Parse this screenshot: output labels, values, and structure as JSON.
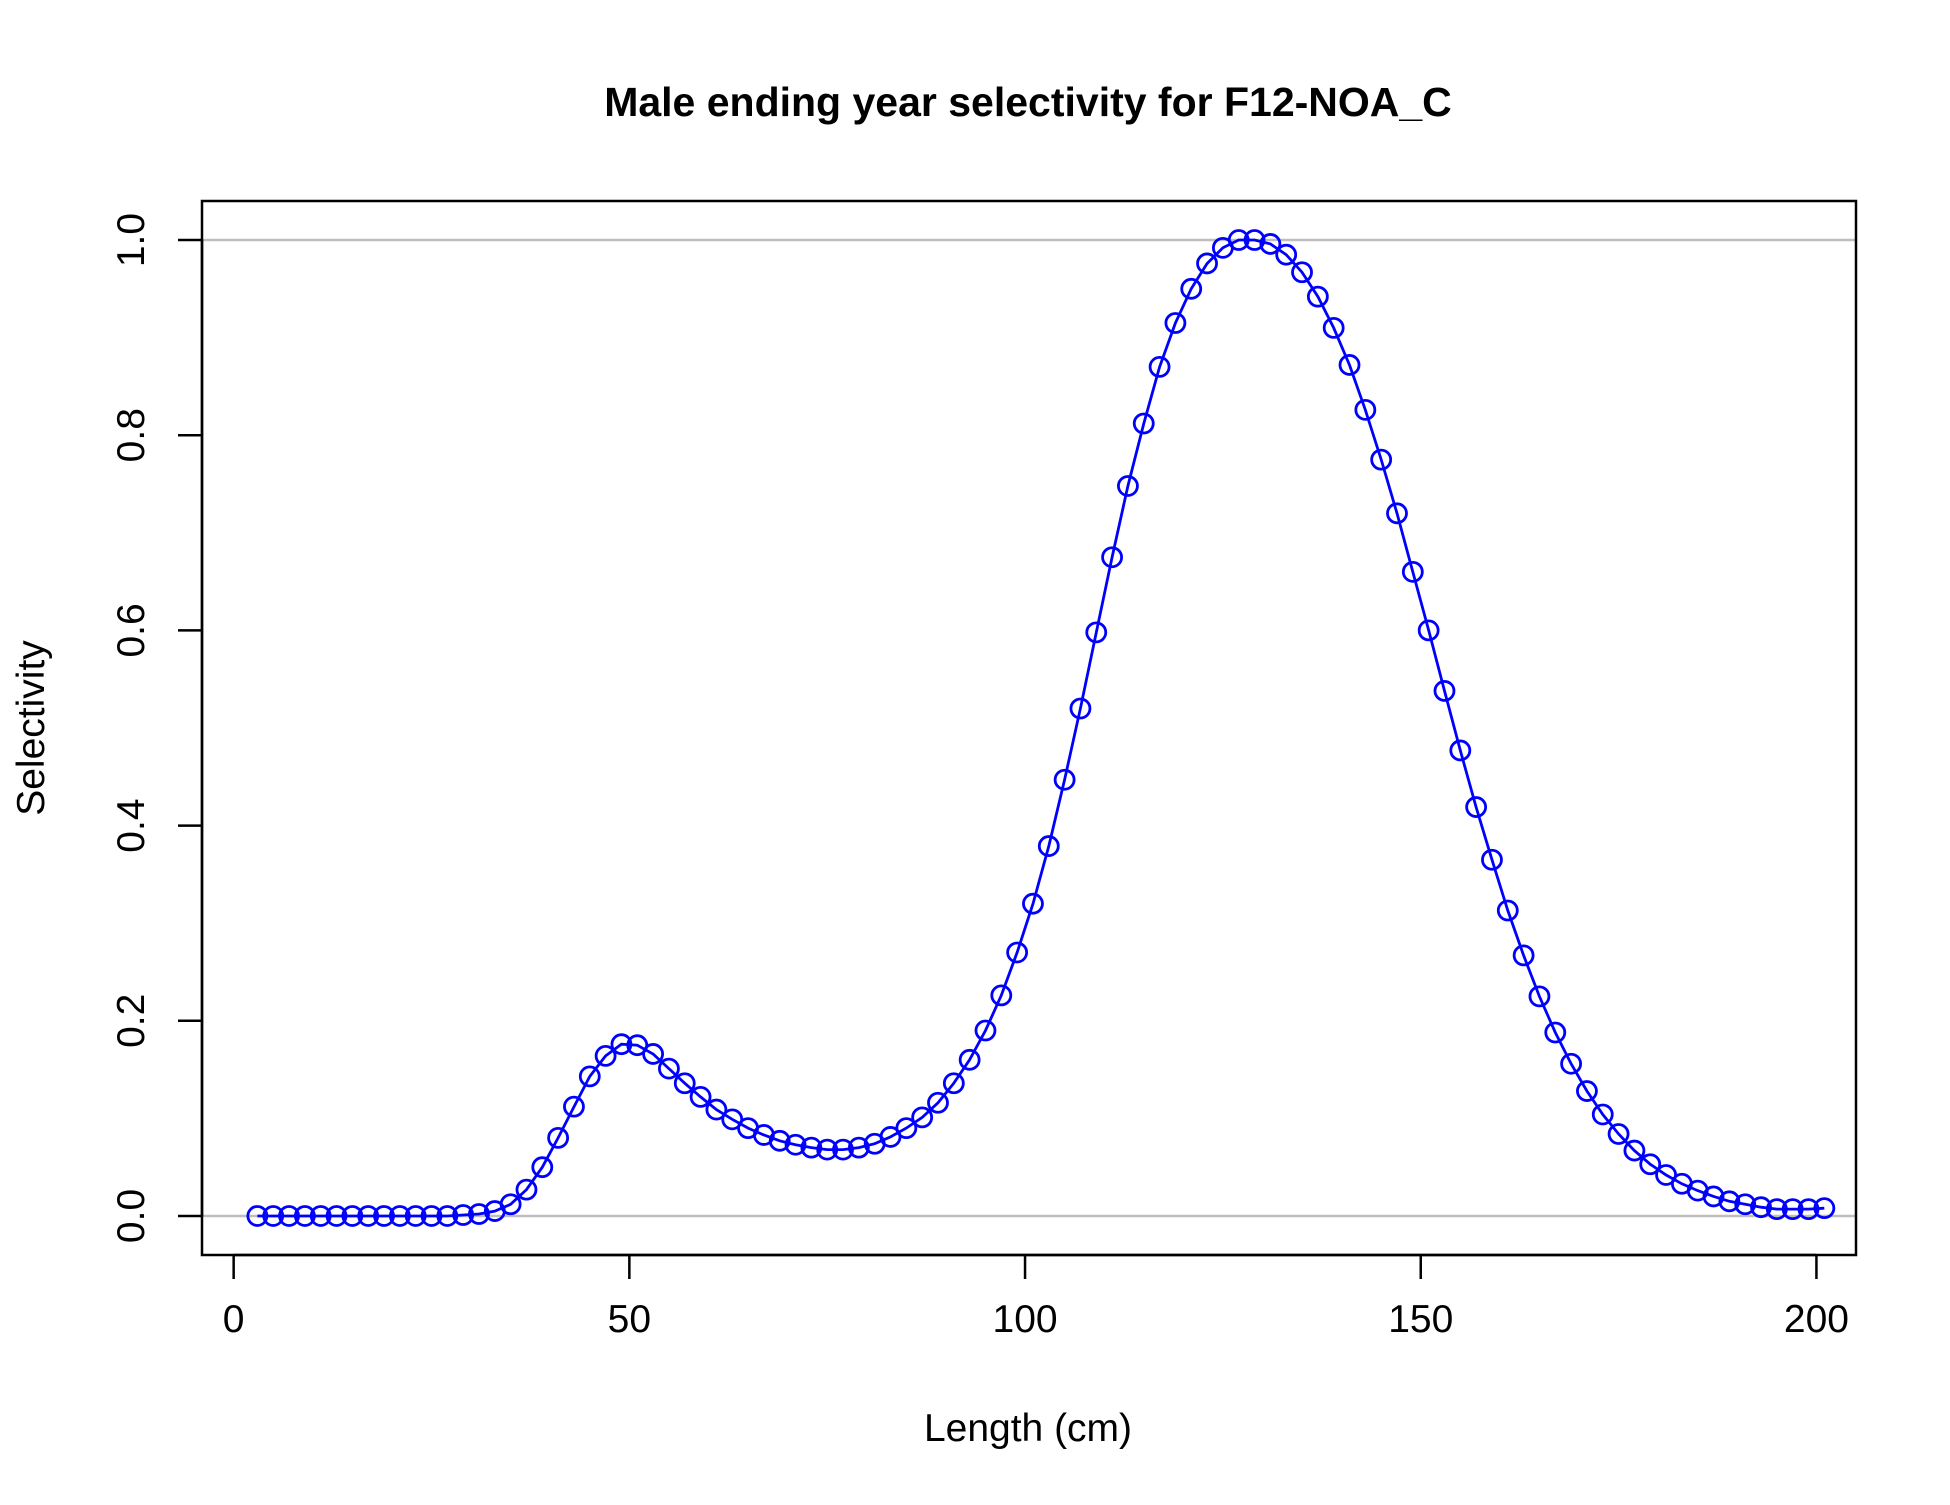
{
  "chart_data": {
    "type": "line",
    "title": "Male ending year selectivity for F12-NOA_C",
    "xlabel": "Length (cm)",
    "ylabel": "Selectivity",
    "xlim": [
      -4,
      205
    ],
    "ylim": [
      -0.04,
      1.04
    ],
    "x_ticks": [
      0,
      50,
      100,
      150,
      200
    ],
    "y_ticks": [
      0.0,
      0.2,
      0.4,
      0.6,
      0.8,
      1.0
    ],
    "x_tick_labels": [
      "0",
      "50",
      "100",
      "150",
      "200"
    ],
    "y_tick_labels": [
      "0.0",
      "0.2",
      "0.4",
      "0.6",
      "0.8",
      "1.0"
    ],
    "reference_lines": [
      0,
      1
    ],
    "grid": false,
    "legend": "none",
    "colors": {
      "series": "#0000ff",
      "reference": "#bebebe"
    },
    "series": [
      {
        "x": [
          3,
          5,
          7,
          9,
          11,
          13,
          15,
          17,
          19,
          21,
          23,
          25,
          27,
          29,
          31,
          33,
          35,
          37,
          39,
          41,
          43,
          45,
          47,
          49,
          51,
          53,
          55,
          57,
          59,
          61,
          63,
          65,
          67,
          69,
          71,
          73,
          75,
          77,
          79,
          81,
          83,
          85,
          87,
          89,
          91,
          93,
          95,
          97,
          99,
          101,
          103,
          105,
          107,
          109,
          111,
          113,
          115,
          117,
          119,
          121,
          123,
          125,
          127,
          129,
          131,
          133,
          135,
          137,
          139,
          141,
          143,
          145,
          147,
          149,
          151,
          153,
          155,
          157,
          159,
          161,
          163,
          165,
          167,
          169,
          171,
          173,
          175,
          177,
          179,
          181,
          183,
          185,
          187,
          189,
          191,
          193,
          195,
          197,
          199,
          201
        ],
        "values": [
          0.0,
          0.0,
          0.0,
          0.0,
          0.0,
          0.0,
          0.0,
          0.0,
          0.0,
          0.0,
          0.0,
          0.0,
          0.0,
          0.001,
          0.002,
          0.005,
          0.012,
          0.027,
          0.05,
          0.08,
          0.112,
          0.143,
          0.164,
          0.176,
          0.175,
          0.166,
          0.151,
          0.136,
          0.122,
          0.109,
          0.099,
          0.09,
          0.083,
          0.077,
          0.073,
          0.07,
          0.068,
          0.068,
          0.07,
          0.074,
          0.081,
          0.09,
          0.101,
          0.116,
          0.136,
          0.16,
          0.19,
          0.226,
          0.27,
          0.32,
          0.379,
          0.447,
          0.52,
          0.598,
          0.675,
          0.748,
          0.812,
          0.87,
          0.915,
          0.95,
          0.976,
          0.992,
          1.0,
          1.0,
          0.996,
          0.985,
          0.967,
          0.942,
          0.91,
          0.872,
          0.826,
          0.775,
          0.72,
          0.66,
          0.6,
          0.538,
          0.477,
          0.419,
          0.365,
          0.313,
          0.267,
          0.225,
          0.188,
          0.156,
          0.128,
          0.104,
          0.084,
          0.067,
          0.053,
          0.042,
          0.033,
          0.026,
          0.02,
          0.015,
          0.012,
          0.009,
          0.007,
          0.007,
          0.007,
          0.008
        ]
      }
    ]
  }
}
